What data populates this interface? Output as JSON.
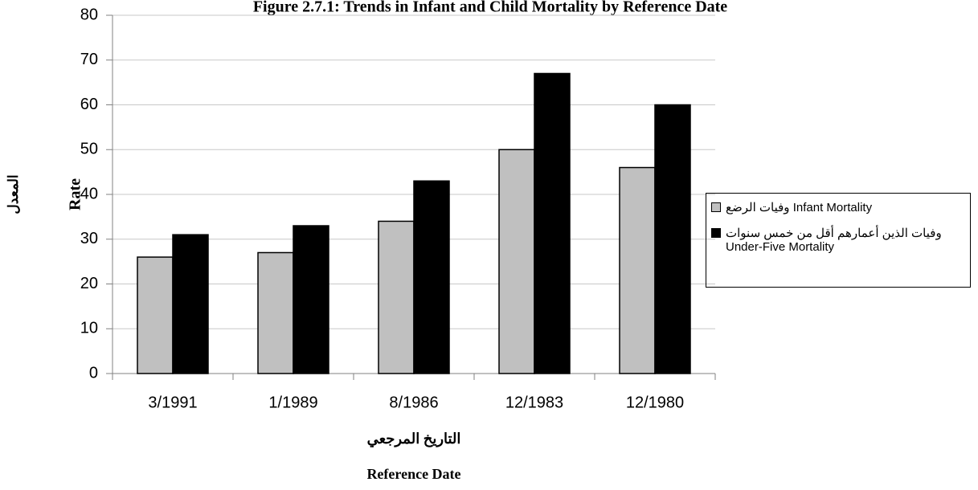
{
  "chart_data": {
    "type": "bar",
    "title": "Figure 2.7.1: Trends in Infant and Child Mortality by Reference Date",
    "y_label": "Rate",
    "y_label_ar": "المعدل",
    "x_label_ar": "التاريخ المرجعي",
    "x_label": "Reference Date",
    "categories": [
      "3/1991",
      "1/1989",
      "8/1986",
      "12/1983",
      "12/1980"
    ],
    "series": [
      {
        "name": "وفيات الرضع Infant Mortality",
        "color": "#c0c0c0",
        "values": [
          26,
          27,
          34,
          50,
          46
        ]
      },
      {
        "name": "وفيات الذين أعمارهم أقل من خمس سنوات Under-Five Mortality",
        "color": "#000000",
        "values": [
          31,
          33,
          43,
          67,
          60
        ]
      }
    ],
    "ylim": [
      0,
      80
    ],
    "yticks": [
      0,
      10,
      20,
      30,
      40,
      50,
      60,
      70,
      80
    ],
    "grid": true,
    "legend": "right"
  }
}
